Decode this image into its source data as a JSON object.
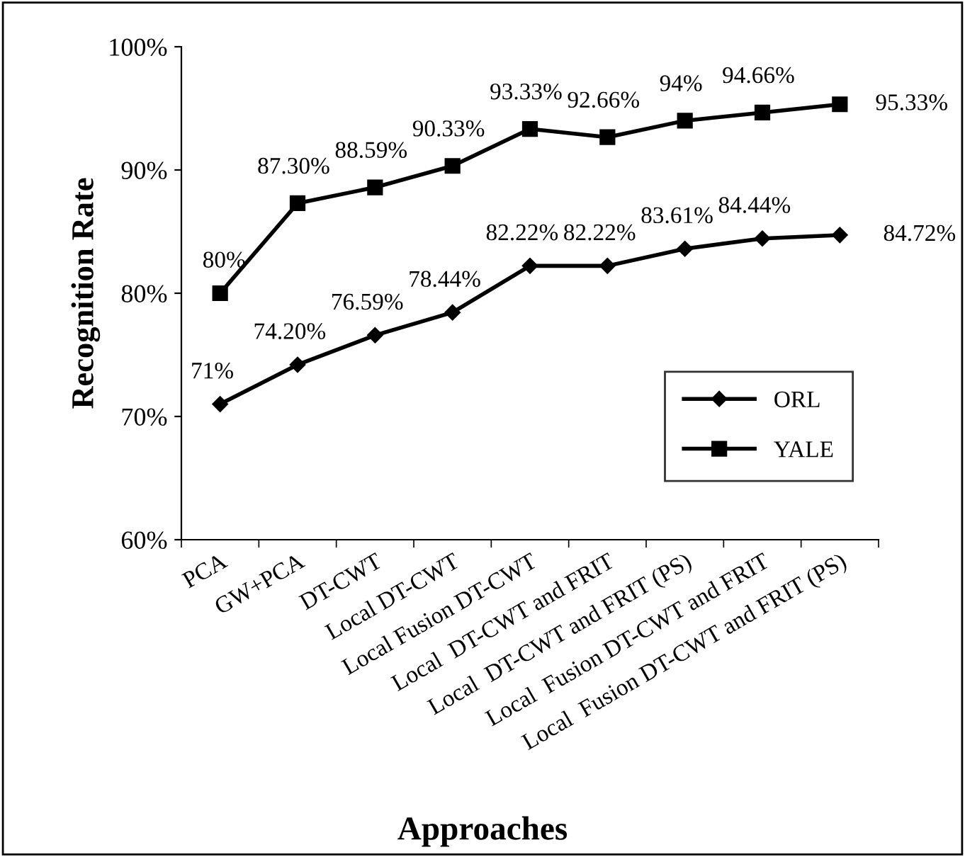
{
  "chart_data": {
    "type": "line",
    "xlabel": "Approaches",
    "ylabel": "Recognition Rate",
    "categories": [
      "PCA",
      "GW+PCA",
      "DT-CWT",
      "Local DT-CWT",
      "Local Fusion DT-CWT",
      "Local  DT-CWT and FRIT",
      "Local  DT-CWT and FRIT (PS)",
      "Local  Fusion DT-CWT and FRIT",
      "Local  Fusion DT-CWT and FRIT (PS)"
    ],
    "series": [
      {
        "name": "ORL",
        "color": "#000000",
        "marker": "diamond",
        "values": [
          71,
          74.2,
          76.59,
          78.44,
          82.22,
          82.22,
          83.61,
          84.44,
          84.72
        ],
        "value_labels": [
          "71%",
          "74.20%",
          "76.59%",
          "78.44%",
          "82.22%",
          "82.22%",
          "83.61%",
          "84.44%",
          "84.72%"
        ]
      },
      {
        "name": "YALE",
        "color": "#000000",
        "marker": "square",
        "values": [
          80,
          87.3,
          88.59,
          90.33,
          93.33,
          92.66,
          94,
          94.66,
          95.33
        ],
        "value_labels": [
          "80%",
          "87.30%",
          "88.59%",
          "90.33%",
          "93.33%",
          "92.66%",
          "94%",
          "94.66%",
          "95.33%"
        ]
      }
    ],
    "ylim": [
      60,
      100
    ],
    "yticks": [
      {
        "value": 60,
        "label": "60%"
      },
      {
        "value": 70,
        "label": "70%"
      },
      {
        "value": 80,
        "label": "80%"
      },
      {
        "value": 90,
        "label": "90%"
      },
      {
        "value": 100,
        "label": "100%"
      }
    ],
    "grid": false,
    "legend": "right",
    "line_style": "solid"
  }
}
